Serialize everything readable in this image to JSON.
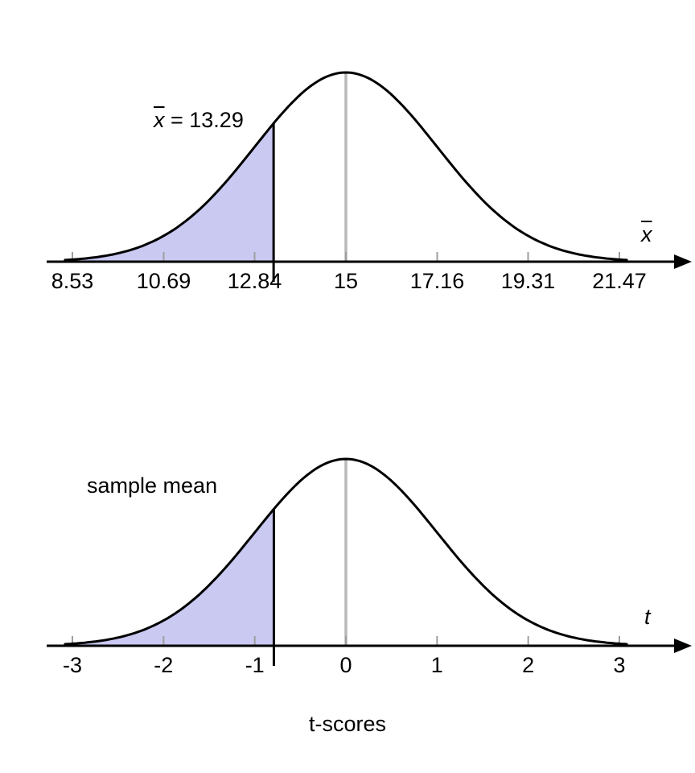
{
  "colors": {
    "background": "#ffffff",
    "shade": "#c9c9f2",
    "curve": "#000000",
    "mean_line": "#b9b9b9",
    "tick": "#9e9e9e",
    "axis": "#000000",
    "text": "#000000"
  },
  "chart_data": [
    {
      "type": "area",
      "curve": "normal-density",
      "mean": 15,
      "sd": 2.16,
      "ticks": [
        8.53,
        10.69,
        12.84,
        15,
        17.16,
        19.31,
        21.47
      ],
      "tick_labels": [
        "8.53",
        "10.69",
        "12.84",
        "15",
        "17.16",
        "19.31",
        "21.47"
      ],
      "shade_from": 8.53,
      "shade_to": 13.29,
      "cutoff": 13.29,
      "cutoff_label": {
        "symbol": "x",
        "text": " = 13.29"
      },
      "axis_symbol": "x",
      "mean_line_at": 15,
      "grid": false,
      "legend": false
    },
    {
      "type": "area",
      "curve": "normal-density",
      "mean": 0,
      "sd": 1,
      "ticks": [
        -3,
        -2,
        -1,
        0,
        1,
        2,
        3
      ],
      "tick_labels": [
        "-3",
        "-2",
        "-1",
        "0",
        "1",
        "2",
        "3"
      ],
      "shade_from": -3,
      "shade_to": -0.79,
      "cutoff": -0.79,
      "annotation": "sample mean",
      "axis_symbol": "t",
      "xlabel": "t-scores",
      "mean_line_at": 0,
      "grid": false,
      "legend": false
    }
  ]
}
